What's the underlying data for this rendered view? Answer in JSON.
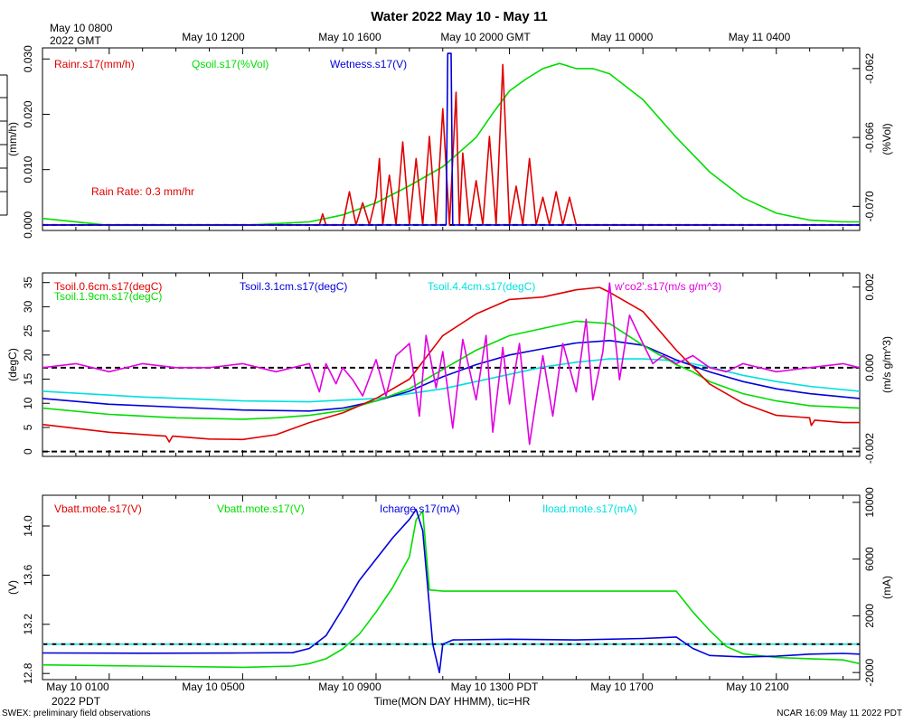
{
  "title": "Water 2022 May 10 - May 11",
  "top_time_labels": [
    "May 10 1200",
    "May 10 1600",
    "May 10 2000 GMT",
    "May 11 0000",
    "May 11 0400"
  ],
  "top_start_label": [
    "May 10 0800",
    "2022 GMT"
  ],
  "bottom_time_labels": [
    "May 10 0100",
    "May 10 0500",
    "May 10 0900",
    "May 10 1300 PDT",
    "May 10 1700",
    "May 10 2100"
  ],
  "bottom_year_label": "2022 PDT",
  "xlabel": "Time(MON DAY HHMM), tic=HR",
  "footer_left": "SWEX: preliminary field observations",
  "footer_right": "NCAR 16:09 May 11 2022 PDT",
  "chart_data": [
    {
      "type": "line",
      "panel": "top",
      "x_unit": "hours since May 10 0000 PDT",
      "xlim": [
        -1,
        23.5
      ],
      "ylabel_left": "(mm/h)",
      "ylabel_right": "(%Vol)",
      "ylim_left": [
        -0.001,
        0.032
      ],
      "ylim_right": [
        -0.0714,
        -0.0608
      ],
      "yticks_left": [
        {
          "v": 0,
          "t": "0.000"
        },
        {
          "v": 0.01,
          "t": "0.010"
        },
        {
          "v": 0.02,
          "t": "0.020"
        },
        {
          "v": 0.03,
          "t": "0.030"
        }
      ],
      "yticks_right": [
        {
          "v": -0.062,
          "t": "-0.062"
        },
        {
          "v": -0.066,
          "t": "-0.066"
        },
        {
          "v": -0.07,
          "t": "-0.070"
        }
      ],
      "legend": [
        {
          "name": "Rainr.s17(mm/h)",
          "color": "#e00000"
        },
        {
          "name": "Qsoil.s17(%Vol)",
          "color": "#00dd00"
        },
        {
          "name": "Wetness.s17(V)",
          "color": "#0000dd"
        }
      ],
      "annotation": "Rain Rate: 0.3 mm/hr",
      "refline_left": 0,
      "series": [
        {
          "name": "Qsoil.s17(%Vol)",
          "axis": "right",
          "color": "#00dd00",
          "x": [
            -1,
            1,
            3,
            5,
            6,
            7,
            8,
            9,
            10,
            11,
            12,
            12.5,
            13,
            13.5,
            14,
            14.5,
            15,
            15.5,
            16,
            17,
            18,
            19,
            20,
            21,
            22,
            23,
            23.5
          ],
          "y": [
            -0.0707,
            -0.0711,
            -0.0711,
            -0.0711,
            -0.071,
            -0.0709,
            -0.0705,
            -0.0698,
            -0.0688,
            -0.0677,
            -0.066,
            -0.0646,
            -0.0633,
            -0.0626,
            -0.062,
            -0.0617,
            -0.062,
            -0.062,
            -0.0623,
            -0.0638,
            -0.066,
            -0.068,
            -0.0695,
            -0.0704,
            -0.0708,
            -0.0709,
            -0.0709
          ]
        },
        {
          "name": "Rainr.s17(mm/h)",
          "axis": "left",
          "color": "#e00000",
          "x": [
            -1,
            7.3,
            7.4,
            7.5,
            8.0,
            8.2,
            8.4,
            8.6,
            8.8,
            9.0,
            9.1,
            9.2,
            9.4,
            9.6,
            9.8,
            10.0,
            10.2,
            10.4,
            10.6,
            10.8,
            11.0,
            11.2,
            11.4,
            11.5,
            11.6,
            11.8,
            12.0,
            12.2,
            12.4,
            12.6,
            12.8,
            13.0,
            13.2,
            13.4,
            13.6,
            13.8,
            14.0,
            14.2,
            14.4,
            14.6,
            14.8,
            15.0,
            23.5
          ],
          "y": [
            0,
            0,
            0.002,
            0,
            0,
            0.006,
            0,
            0.004,
            0,
            0.005,
            0.012,
            0,
            0.009,
            0,
            0.015,
            0,
            0.012,
            0,
            0.016,
            0,
            0.021,
            0,
            0.024,
            0,
            0.013,
            0,
            0.008,
            0,
            0.016,
            0,
            0.029,
            0,
            0.007,
            0,
            0.012,
            0,
            0.005,
            0,
            0.006,
            0,
            0.005,
            0,
            0
          ]
        },
        {
          "name": "Wetness.s17(V)",
          "axis": "left",
          "color": "#0000dd",
          "x": [
            -1,
            11.1,
            11.15,
            11.25,
            11.3,
            23.5
          ],
          "y": [
            0,
            0,
            0.031,
            0.031,
            0,
            0
          ]
        }
      ]
    },
    {
      "type": "line",
      "panel": "middle",
      "x_unit": "hours since May 10 0000 PDT",
      "xlim": [
        -1,
        23.5
      ],
      "ylabel_left": "(degC)",
      "ylabel_right": "(m/s g/m^3)",
      "ylim_left": [
        -1,
        37
      ],
      "ylim_right": [
        -0.0022,
        0.00235
      ],
      "yticks_left": [
        {
          "v": 0,
          "t": "0"
        },
        {
          "v": 5,
          "t": "5"
        },
        {
          "v": 10,
          "t": "10"
        },
        {
          "v": 15,
          "t": "15"
        },
        {
          "v": 20,
          "t": "20"
        },
        {
          "v": 25,
          "t": "25"
        },
        {
          "v": 30,
          "t": "30"
        },
        {
          "v": 35,
          "t": "35"
        }
      ],
      "yticks_right": [
        {
          "v": -0.002,
          "t": "-0.002"
        },
        {
          "v": 0,
          "t": "0.000"
        },
        {
          "v": 0.002,
          "t": "0.002"
        }
      ],
      "legend": [
        {
          "name": "Tsoil.0.6cm.s17(degC)",
          "color": "#e00000"
        },
        {
          "name": "Tsoil.1.9cm.s17(degC)",
          "color": "#00dd00"
        },
        {
          "name": "Tsoil.3.1cm.s17(degC)",
          "color": "#0000dd"
        },
        {
          "name": "Tsoil.4.4cm.s17(degC)",
          "color": "#00e0e0"
        },
        {
          "name": "w'co2'.s17(m/s g/m^3)",
          "color": "#e000e0"
        }
      ],
      "refline_left": 0,
      "refline_right": 0,
      "series": [
        {
          "name": "Tsoil.4.4cm.s17(degC)",
          "axis": "left",
          "color": "#00e0e0",
          "x": [
            -1,
            2,
            5,
            7,
            9,
            11,
            13,
            14,
            15,
            16,
            17,
            18,
            19,
            20,
            21,
            22,
            23.5
          ],
          "y": [
            12.5,
            11.3,
            10.5,
            10.3,
            11,
            13,
            16,
            17.5,
            18.5,
            19.2,
            19.2,
            18.8,
            17.5,
            15.8,
            14.5,
            13.5,
            12.5
          ]
        },
        {
          "name": "Tsoil.3.1cm.s17(degC)",
          "axis": "left",
          "color": "#0000dd",
          "x": [
            -1,
            1,
            3,
            5,
            7,
            8,
            9,
            10,
            11,
            12,
            13,
            14,
            15,
            16,
            17,
            18,
            19,
            20,
            21,
            22,
            23.5
          ],
          "y": [
            11,
            9.8,
            9.2,
            8.6,
            8.4,
            9,
            10.5,
            12.5,
            15.5,
            18,
            20,
            21.3,
            22.5,
            23,
            22,
            19,
            16.5,
            14.5,
            13,
            12,
            11
          ]
        },
        {
          "name": "Tsoil.1.9cm.s17(degC)",
          "axis": "left",
          "color": "#00dd00",
          "x": [
            -1,
            1,
            3,
            5,
            6,
            7,
            8,
            9,
            10,
            11,
            12,
            13,
            14,
            15,
            16,
            17,
            18,
            18.5,
            19,
            20,
            21,
            22,
            23.5
          ],
          "y": [
            9,
            7.7,
            7,
            6.7,
            7,
            7.5,
            8.5,
            10.5,
            13,
            17,
            21,
            24,
            25.5,
            27,
            26.5,
            22,
            18,
            16.5,
            14.5,
            12,
            10.5,
            9.5,
            9
          ]
        },
        {
          "name": "Tsoil.0.6cm.s17(degC)",
          "axis": "left",
          "color": "#e00000",
          "x": [
            -1,
            1,
            2.7,
            2.8,
            2.9,
            4,
            5,
            6,
            7,
            8,
            9,
            10,
            11,
            12,
            13,
            14,
            15,
            15.7,
            16,
            17,
            18,
            19,
            20,
            21,
            22,
            22,
            22.05,
            22.15,
            23,
            23.5
          ],
          "y": [
            5.6,
            4,
            3.2,
            2,
            3.2,
            2.6,
            2.5,
            3.5,
            6,
            8,
            11,
            15,
            24,
            28.5,
            31.5,
            32,
            33.5,
            34,
            33,
            29,
            21,
            14,
            10,
            7.5,
            7,
            6.8,
            5.4,
            6.5,
            6,
            6
          ]
        },
        {
          "name": "w'co2'.s17(m/s g/m^3)",
          "axis": "right",
          "color": "#e000e0",
          "x": [
            -1,
            0,
            1,
            2,
            3,
            4,
            5,
            5.5,
            6,
            6.5,
            7,
            7.3,
            7.5,
            7.8,
            8,
            8.3,
            8.6,
            9,
            9.3,
            9.6,
            10,
            10.3,
            10.5,
            10.8,
            11,
            11.3,
            11.6,
            12,
            12.3,
            12.5,
            12.8,
            13,
            13.3,
            13.6,
            14,
            14.3,
            14.6,
            15,
            15.3,
            15.5,
            15.8,
            16,
            16.3,
            16.6,
            17,
            17.3,
            17.6,
            18,
            18.5,
            19,
            19.5,
            20,
            21,
            22,
            23,
            23.5
          ],
          "y": [
            0,
            0.0001,
            -0.0001,
            0.0001,
            0,
            0,
            0.0001,
            0,
            -0.0001,
            0,
            0.0001,
            -0.0006,
            0.0001,
            -0.0004,
            0,
            -0.0003,
            -0.0007,
            0.0002,
            -0.0007,
            0.0003,
            0.0006,
            -0.0012,
            0.0008,
            -0.0005,
            0.0004,
            -0.0015,
            0.0007,
            -0.0008,
            0.0008,
            -0.0016,
            0.0005,
            -0.0009,
            0.0006,
            -0.0019,
            0.0003,
            -0.0012,
            0.0006,
            -0.0006,
            0.0012,
            -0.0008,
            0.0004,
            0.0021,
            -0.0003,
            0.0013,
            0.0006,
            0.0001,
            0.0003,
            0.0001,
            0.0003,
            0,
            -0.0001,
            0.0001,
            -0.0001,
            0,
            0.0001,
            0
          ]
        }
      ]
    },
    {
      "type": "line",
      "panel": "bottom",
      "x_unit": "hours since May 10 0000 PDT",
      "xlim": [
        -1,
        23.5
      ],
      "ylabel_left": "(V)",
      "ylabel_right": "(mA)",
      "ylim_left": [
        12.75,
        14.25
      ],
      "ylim_right": [
        -2500,
        10500
      ],
      "yticks_left": [
        {
          "v": 12.8,
          "t": "12.8"
        },
        {
          "v": 13.2,
          "t": "13.2"
        },
        {
          "v": 13.6,
          "t": "13.6"
        },
        {
          "v": 14.0,
          "t": "14.0"
        }
      ],
      "yticks_right": [
        {
          "v": -2000,
          "t": "-2000"
        },
        {
          "v": 2000,
          "t": "2000"
        },
        {
          "v": 6000,
          "t": "6000"
        },
        {
          "v": 10000,
          "t": "10000"
        }
      ],
      "legend": [
        {
          "name": "Vbatt.mote.s17(V)",
          "color": "#e00000"
        },
        {
          "name": "Vbatt.mote.s17(V)",
          "color": "#00dd00"
        },
        {
          "name": "Icharge.s17(mA)",
          "color": "#0000dd"
        },
        {
          "name": "Iload.mote.s17(mA)",
          "color": "#00e0e0"
        }
      ],
      "refline_right": 0,
      "series": [
        {
          "name": "Vbatt.mote.s17(V)",
          "axis": "left",
          "color": "#00dd00",
          "x": [
            -1,
            2,
            5,
            6.5,
            7,
            7.5,
            8,
            8.5,
            9,
            9.5,
            10,
            10.2,
            10.4,
            10.6,
            11,
            13,
            15,
            16,
            17,
            18,
            18.5,
            19,
            19.5,
            20,
            21,
            22,
            23,
            23.5
          ],
          "y": [
            12.87,
            12.86,
            12.85,
            12.86,
            12.88,
            12.92,
            13.0,
            13.12,
            13.3,
            13.5,
            13.75,
            14.05,
            14.12,
            13.48,
            13.47,
            13.47,
            13.47,
            13.47,
            13.47,
            13.47,
            13.3,
            13.15,
            13.02,
            12.96,
            12.93,
            12.92,
            12.91,
            12.88
          ]
        },
        {
          "name": "Icharge.s17(mA)",
          "axis": "right",
          "color": "#0000dd",
          "x": [
            -1,
            2,
            5,
            6.5,
            7,
            7.5,
            8,
            8.5,
            9,
            9.5,
            10,
            10.2,
            10.4,
            10.7,
            10.9,
            11,
            11.3,
            13,
            15,
            17,
            18,
            18.5,
            19,
            20,
            21,
            22,
            23,
            23.5
          ],
          "y": [
            -620,
            -640,
            -620,
            -600,
            -300,
            600,
            2500,
            4500,
            6000,
            7500,
            8800,
            9500,
            8000,
            0,
            -2000,
            0,
            300,
            350,
            300,
            400,
            500,
            -300,
            -800,
            -900,
            -850,
            -700,
            -650,
            -700
          ]
        }
      ]
    }
  ]
}
